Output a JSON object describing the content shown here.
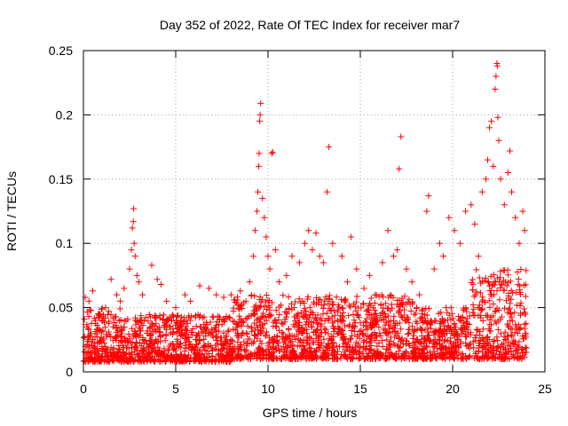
{
  "chart_data": {
    "type": "scatter",
    "title": "Day 352 of 2022, Rate Of TEC Index for receiver mar7",
    "xlabel": "GPS time / hours",
    "ylabel": "ROTI / TECUs",
    "xlim": [
      0,
      25
    ],
    "ylim": [
      0,
      0.25
    ],
    "x_ticks": [
      0,
      5,
      10,
      15,
      20,
      25
    ],
    "x_tick_labels": [
      "0",
      "5",
      "10",
      "15",
      "20",
      "25"
    ],
    "y_ticks": [
      0,
      0.05,
      0.1,
      0.15,
      0.2,
      0.25
    ],
    "y_tick_labels": [
      "0",
      "0.05",
      "0.1",
      "0.15",
      "0.2",
      "0.25"
    ],
    "grid": true,
    "marker": "+",
    "color": "#ff0000",
    "series": [
      {
        "name": "ROTI",
        "points": [
          [
            0.1,
            0.058
          ],
          [
            0.3,
            0.055
          ],
          [
            0.5,
            0.063
          ],
          [
            0.2,
            0.035
          ],
          [
            0.4,
            0.03
          ],
          [
            0.8,
            0.045
          ],
          [
            1.0,
            0.04
          ],
          [
            1.2,
            0.05
          ],
          [
            1.5,
            0.072
          ],
          [
            1.8,
            0.06
          ],
          [
            2.0,
            0.055
          ],
          [
            2.2,
            0.065
          ],
          [
            2.5,
            0.08
          ],
          [
            2.6,
            0.095
          ],
          [
            2.65,
            0.112
          ],
          [
            2.7,
            0.117
          ],
          [
            2.72,
            0.127
          ],
          [
            2.75,
            0.1
          ],
          [
            2.8,
            0.09
          ],
          [
            2.9,
            0.075
          ],
          [
            3.0,
            0.07
          ],
          [
            3.2,
            0.06
          ],
          [
            3.7,
            0.083
          ],
          [
            4.0,
            0.072
          ],
          [
            4.2,
            0.068
          ],
          [
            4.5,
            0.055
          ],
          [
            5.0,
            0.05
          ],
          [
            5.5,
            0.06
          ],
          [
            5.8,
            0.055
          ],
          [
            6.3,
            0.067
          ],
          [
            6.8,
            0.065
          ],
          [
            7.2,
            0.06
          ],
          [
            7.6,
            0.058
          ],
          [
            8.0,
            0.06
          ],
          [
            8.5,
            0.063
          ],
          [
            8.8,
            0.055
          ],
          [
            9.0,
            0.07
          ],
          [
            9.2,
            0.09
          ],
          [
            9.3,
            0.11
          ],
          [
            9.4,
            0.125
          ],
          [
            9.45,
            0.14
          ],
          [
            9.5,
            0.16
          ],
          [
            9.52,
            0.17
          ],
          [
            9.55,
            0.195
          ],
          [
            9.57,
            0.2
          ],
          [
            9.6,
            0.209
          ],
          [
            9.7,
            0.135
          ],
          [
            9.8,
            0.12
          ],
          [
            9.9,
            0.105
          ],
          [
            10.0,
            0.09
          ],
          [
            10.1,
            0.08
          ],
          [
            10.2,
            0.17
          ],
          [
            10.25,
            0.171
          ],
          [
            10.4,
            0.095
          ],
          [
            10.6,
            0.07
          ],
          [
            11.0,
            0.075
          ],
          [
            11.3,
            0.09
          ],
          [
            11.7,
            0.085
          ],
          [
            12.0,
            0.1
          ],
          [
            12.2,
            0.11
          ],
          [
            12.4,
            0.095
          ],
          [
            12.6,
            0.108
          ],
          [
            12.8,
            0.09
          ],
          [
            13.0,
            0.085
          ],
          [
            13.2,
            0.14
          ],
          [
            13.3,
            0.175
          ],
          [
            13.5,
            0.1
          ],
          [
            14.0,
            0.09
          ],
          [
            14.3,
            0.07
          ],
          [
            14.5,
            0.105
          ],
          [
            14.8,
            0.08
          ],
          [
            15.2,
            0.065
          ],
          [
            15.5,
            0.075
          ],
          [
            15.8,
            0.06
          ],
          [
            16.2,
            0.085
          ],
          [
            16.5,
            0.11
          ],
          [
            16.8,
            0.09
          ],
          [
            17.0,
            0.095
          ],
          [
            17.1,
            0.158
          ],
          [
            17.2,
            0.183
          ],
          [
            17.5,
            0.08
          ],
          [
            17.8,
            0.07
          ],
          [
            18.2,
            0.06
          ],
          [
            18.6,
            0.125
          ],
          [
            18.7,
            0.137
          ],
          [
            19.0,
            0.08
          ],
          [
            19.3,
            0.1
          ],
          [
            19.5,
            0.09
          ],
          [
            19.8,
            0.12
          ],
          [
            20.1,
            0.11
          ],
          [
            20.4,
            0.1
          ],
          [
            20.7,
            0.125
          ],
          [
            21.0,
            0.13
          ],
          [
            21.2,
            0.115
          ],
          [
            21.4,
            0.09
          ],
          [
            21.6,
            0.14
          ],
          [
            21.8,
            0.15
          ],
          [
            21.9,
            0.165
          ],
          [
            22.0,
            0.19
          ],
          [
            22.1,
            0.195
          ],
          [
            22.2,
            0.16
          ],
          [
            22.3,
            0.22
          ],
          [
            22.35,
            0.23
          ],
          [
            22.4,
            0.24
          ],
          [
            22.42,
            0.238
          ],
          [
            22.45,
            0.198
          ],
          [
            22.5,
            0.18
          ],
          [
            22.6,
            0.15
          ],
          [
            22.8,
            0.13
          ],
          [
            23.0,
            0.155
          ],
          [
            23.1,
            0.172
          ],
          [
            23.2,
            0.14
          ],
          [
            23.4,
            0.12
          ],
          [
            23.6,
            0.1
          ],
          [
            23.8,
            0.125
          ],
          [
            23.9,
            0.11
          ]
        ]
      }
    ],
    "dense_band": {
      "description_only_for_generation": false,
      "segments": [
        {
          "x_start": 0,
          "x_end": 2,
          "y_min": 0.008,
          "y_max": 0.05
        },
        {
          "x_start": 2,
          "x_end": 8,
          "y_min": 0.008,
          "y_max": 0.045
        },
        {
          "x_start": 8,
          "x_end": 18,
          "y_min": 0.01,
          "y_max": 0.06
        },
        {
          "x_start": 18,
          "x_end": 21,
          "y_min": 0.01,
          "y_max": 0.05
        },
        {
          "x_start": 21,
          "x_end": 24,
          "y_min": 0.01,
          "y_max": 0.08
        }
      ],
      "count": 2600,
      "seed": 352
    }
  }
}
